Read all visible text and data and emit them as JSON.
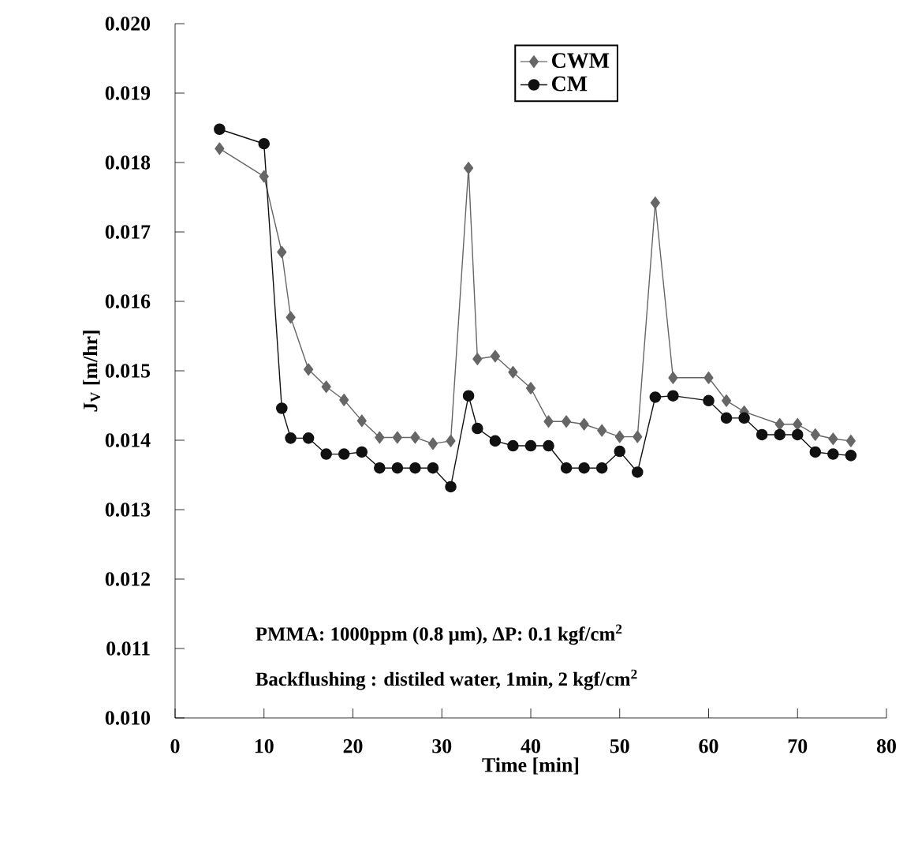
{
  "chart_data": {
    "type": "line",
    "xlabel": "Time [min]",
    "ylabel": "J$_{V}$ [m/hr]",
    "x": [
      5,
      10,
      12,
      13,
      15,
      17,
      19,
      21,
      23,
      25,
      27,
      29,
      31,
      33,
      34,
      36,
      38,
      40,
      42,
      44,
      46,
      48,
      50,
      52,
      54,
      56,
      60,
      62,
      64,
      66,
      68,
      70,
      72,
      74,
      76
    ],
    "series": [
      {
        "name": "CWM",
        "color": "#666666",
        "marker": "diamond",
        "values": [
          0.0182,
          0.0178,
          0.01671,
          0.01577,
          0.01502,
          0.01477,
          0.01458,
          0.01428,
          0.01404,
          0.01404,
          0.01404,
          0.01395,
          0.01399,
          0.01792,
          0.01517,
          0.01521,
          0.01498,
          0.01475,
          0.01427,
          0.01427,
          0.01423,
          0.01414,
          0.01405,
          0.01405,
          0.01742,
          0.0149,
          0.0149,
          0.01457,
          0.01441,
          null,
          0.01423,
          0.01423,
          0.01408,
          0.01402,
          0.01399
        ]
      },
      {
        "name": "CM",
        "color": "#111111",
        "marker": "circle",
        "values": [
          0.01848,
          0.01827,
          0.01446,
          0.01403,
          0.01403,
          0.0138,
          0.0138,
          0.01383,
          0.0136,
          0.0136,
          0.0136,
          0.0136,
          0.01333,
          0.01464,
          0.01417,
          0.01399,
          0.01392,
          0.01392,
          0.01392,
          0.0136,
          0.0136,
          0.0136,
          0.01384,
          0.01354,
          0.01462,
          0.01464,
          0.01457,
          0.01432,
          0.01432,
          0.01408,
          0.01408,
          0.01408,
          0.01383,
          0.0138,
          0.01378
        ]
      }
    ],
    "xlim": [
      0,
      80
    ],
    "xticks": [
      0,
      10,
      20,
      30,
      40,
      50,
      60,
      70,
      80
    ],
    "ylim": [
      0.01,
      0.02
    ],
    "yticks": [
      {
        "value": 0.01,
        "label": "0.010"
      },
      {
        "value": 0.011,
        "label": "0.011"
      },
      {
        "value": 0.012,
        "label": "0.012"
      },
      {
        "value": 0.013,
        "label": "0.013"
      },
      {
        "value": 0.014,
        "label": "0.014"
      },
      {
        "value": 0.015,
        "label": "0.015"
      },
      {
        "value": 0.016,
        "label": "0.016"
      },
      {
        "value": 0.017,
        "label": "0.017"
      },
      {
        "value": 0.018,
        "label": "0.018"
      },
      {
        "value": 0.019,
        "label": "0.019"
      },
      {
        "value": 0.02,
        "label": "0.020"
      }
    ],
    "annotations": [
      "PMMA: 1000ppm (0.8 μm), ΔP: 0.1 kgf/cm$^{2}$",
      "Backflushing : distiled water, 1min, 2 kgf/cm$^{2}$"
    ],
    "legend": "top",
    "line_style": "solid"
  }
}
